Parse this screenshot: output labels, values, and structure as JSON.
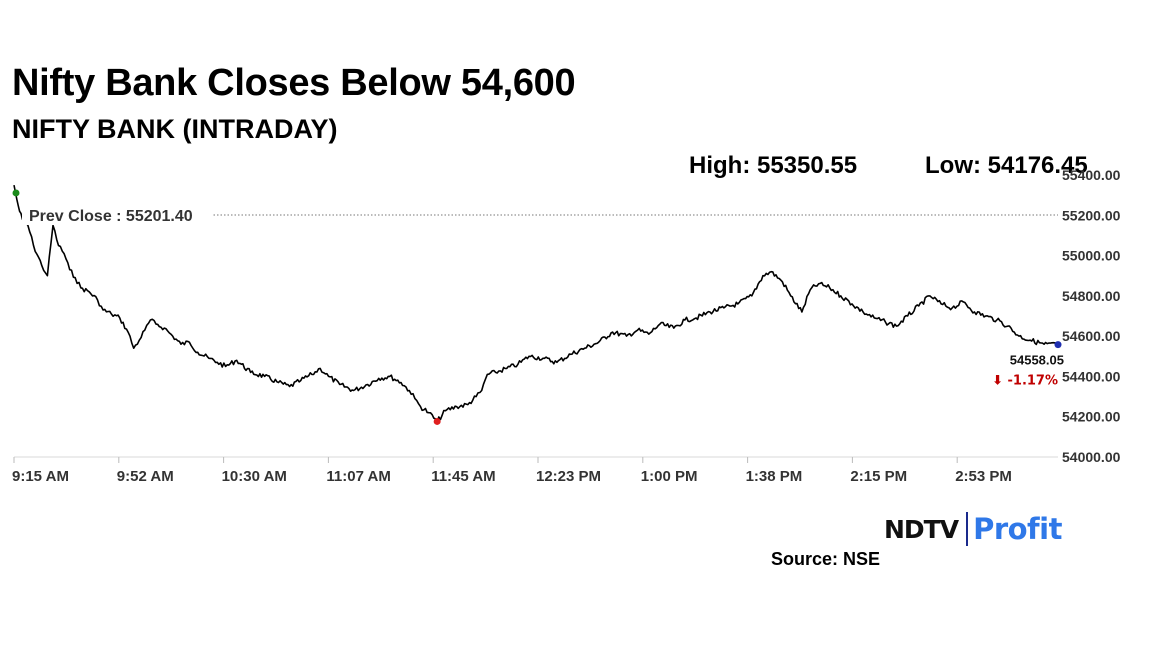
{
  "title": "Nifty Bank Closes Below 54,600",
  "subtitle": "NIFTY BANK (INTRADAY)",
  "high_text": "High: 55350.55",
  "low_text": "Low: 54176.45",
  "source": "Source: NSE",
  "logo": {
    "part1": "NDTV",
    "part2": "Profit"
  },
  "colors": {
    "line": "#000000",
    "high_marker": "#1a8a1a",
    "low_marker": "#e02020",
    "last_marker": "#1f2fb0",
    "change": "#c00000",
    "logo_accent": "#2f78e8"
  },
  "chart_data": {
    "type": "line",
    "x_ticks": [
      "9:15 AM",
      "9:52 AM",
      "10:30 AM",
      "11:07 AM",
      "11:45 AM",
      "12:23 PM",
      "1:00 PM",
      "1:38 PM",
      "2:15 PM",
      "2:53 PM"
    ],
    "y_ticks": [
      "54000.00",
      "54200.00",
      "54400.00",
      "54600.00",
      "54800.00",
      "55000.00",
      "55200.00",
      "55400.00"
    ],
    "ylim": [
      54000,
      55400
    ],
    "xlim": [
      "9:15",
      "15:30"
    ],
    "prev_close": 55201.4,
    "prev_close_label": "Prev Close : 55201.40",
    "last_value_label": "54558.05",
    "change_label": "⬇ -1.17%",
    "high": {
      "time": "9:15",
      "value": 55350.55
    },
    "low": {
      "time": "11:47",
      "value": 54176.45
    },
    "close": {
      "time": "15:30",
      "value": 54558.05
    },
    "series": [
      {
        "x": [
          "9:15",
          "9:16",
          "9:17",
          "9:18",
          "9:20",
          "9:22",
          "9:25",
          "9:27",
          "9:29",
          "9:31",
          "9:33",
          "9:35",
          "9:37",
          "9:39",
          "9:42",
          "9:45",
          "9:47",
          "9:50",
          "9:53",
          "9:56",
          "9:58",
          "10:00",
          "10:02",
          "10:04",
          "10:06",
          "10:09",
          "10:12",
          "10:15",
          "10:18",
          "10:21",
          "10:25",
          "10:28",
          "10:31",
          "10:35",
          "10:40",
          "10:45",
          "10:50",
          "10:54",
          "10:58",
          "11:02",
          "11:05",
          "11:08",
          "11:12",
          "11:17",
          "11:22",
          "11:26",
          "11:30",
          "11:34",
          "11:37",
          "11:39",
          "11:41",
          "11:44",
          "11:47",
          "11:50",
          "11:54",
          "11:58",
          "12:01",
          "12:03",
          "12:05",
          "12:08",
          "12:12",
          "12:16",
          "12:20",
          "12:25",
          "12:30",
          "12:35",
          "12:40",
          "12:45",
          "12:50",
          "12:55",
          "12:59",
          "13:03",
          "13:07",
          "13:12",
          "13:16",
          "13:20",
          "13:25",
          "13:30",
          "13:35",
          "13:40",
          "13:44",
          "13:47",
          "13:51",
          "13:54",
          "13:58",
          "14:01",
          "14:04",
          "14:08",
          "14:12",
          "14:16",
          "14:20",
          "14:24",
          "14:28",
          "14:32",
          "14:36",
          "14:40",
          "14:44",
          "14:48",
          "14:52",
          "14:56",
          "15:00",
          "15:04",
          "15:08",
          "15:12",
          "15:16",
          "15:20",
          "15:25",
          "15:30"
        ],
        "y": [
          55350,
          55280,
          55220,
          55180,
          55150,
          55050,
          54950,
          54900,
          55150,
          55050,
          55010,
          54930,
          54890,
          54840,
          54820,
          54780,
          54730,
          54710,
          54690,
          54620,
          54540,
          54580,
          54630,
          54680,
          54660,
          54640,
          54600,
          54560,
          54570,
          54520,
          54490,
          54470,
          54450,
          54480,
          54420,
          54400,
          54370,
          54350,
          54380,
          54410,
          54440,
          54400,
          54360,
          54330,
          54360,
          54390,
          54400,
          54370,
          54330,
          54290,
          54250,
          54220,
          54176,
          54230,
          54250,
          54260,
          54300,
          54330,
          54410,
          54420,
          54440,
          54460,
          54500,
          54490,
          54470,
          54510,
          54540,
          54570,
          54620,
          54600,
          54630,
          54610,
          54660,
          54640,
          54680,
          54690,
          54720,
          54740,
          54760,
          54800,
          54900,
          54920,
          54870,
          54800,
          54720,
          54830,
          54860,
          54840,
          54800,
          54760,
          54720,
          54690,
          54670,
          54650,
          54700,
          54750,
          54800,
          54760,
          54740,
          54770,
          54720,
          54700,
          54680,
          54650,
          54600,
          54580,
          54560,
          54558
        ]
      }
    ]
  }
}
